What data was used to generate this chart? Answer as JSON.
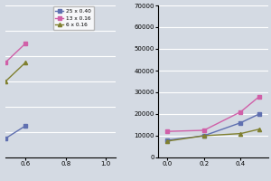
{
  "background_color": "#d4dae3",
  "legend_labels": [
    "25 x 0.40",
    "13 x 0.16",
    "6 x 0.16"
  ],
  "legend_colors": [
    "#6070b0",
    "#d060a8",
    "#808030"
  ],
  "legend_markers": [
    "s",
    "s",
    "^"
  ],
  "plot1": {
    "xlim": [
      0.5,
      1.05
    ],
    "ylim": [
      0,
      12
    ],
    "xticks": [
      0.6,
      0.8,
      1.0
    ],
    "yticks": [
      0,
      2,
      4,
      6,
      8,
      10,
      12
    ],
    "series": [
      {
        "x": [
          0.5,
          0.6
        ],
        "y": [
          1.5,
          2.5
        ],
        "color": "#6070b0",
        "marker": "s"
      },
      {
        "x": [
          0.5,
          0.6
        ],
        "y": [
          7.5,
          9.0
        ],
        "color": "#d060a8",
        "marker": "s"
      },
      {
        "x": [
          0.5,
          0.6
        ],
        "y": [
          6.0,
          7.5
        ],
        "color": "#808030",
        "marker": "^"
      }
    ]
  },
  "plot2": {
    "xlim": [
      -0.05,
      0.55
    ],
    "ylim": [
      0,
      70000
    ],
    "xticks": [
      0.0,
      0.2,
      0.4
    ],
    "yticks": [
      0,
      10000,
      20000,
      30000,
      40000,
      50000,
      60000,
      70000
    ],
    "series": [
      {
        "x": [
          0.0,
          0.2,
          0.4,
          0.5
        ],
        "y": [
          8000,
          10000,
          16000,
          20000
        ],
        "color": "#6070b0",
        "marker": "s"
      },
      {
        "x": [
          0.0,
          0.2,
          0.4,
          0.5
        ],
        "y": [
          12000,
          12500,
          21000,
          28000
        ],
        "color": "#d060a8",
        "marker": "s"
      },
      {
        "x": [
          0.0,
          0.2,
          0.4,
          0.5
        ],
        "y": [
          7500,
          10000,
          11000,
          13000
        ],
        "color": "#808030",
        "marker": "^"
      }
    ]
  }
}
